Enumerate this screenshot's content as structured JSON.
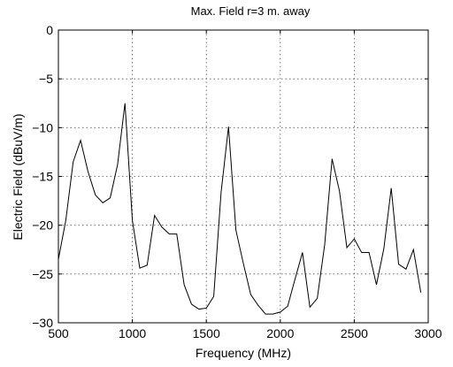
{
  "chart_data": {
    "type": "line",
    "title": "Max. Field r=3 m. away",
    "xlabel": "Frequency (MHz)",
    "ylabel": "Electric Field (dBuV/m)",
    "xlim": [
      500,
      3000
    ],
    "ylim": [
      -30,
      0
    ],
    "xticks": [
      500,
      1000,
      1500,
      2000,
      2500,
      3000
    ],
    "yticks": [
      0,
      -5,
      -10,
      -15,
      -20,
      -25,
      -30
    ],
    "grid": true,
    "series": [
      {
        "color": "#000000",
        "x": [
          500,
          550,
          600,
          650,
          700,
          750,
          800,
          850,
          900,
          950,
          1000,
          1050,
          1100,
          1150,
          1200,
          1250,
          1300,
          1350,
          1400,
          1450,
          1500,
          1550,
          1600,
          1650,
          1700,
          1750,
          1800,
          1850,
          1900,
          1950,
          2000,
          2050,
          2100,
          2150,
          2200,
          2250,
          2300,
          2350,
          2400,
          2450,
          2500,
          2550,
          2600,
          2650,
          2700,
          2750,
          2800,
          2850,
          2900,
          2950
        ],
        "y": [
          -23.5,
          -19.5,
          -13.5,
          -11.3,
          -14.5,
          -16.9,
          -17.7,
          -17.2,
          -13.8,
          -7.5,
          -19.5,
          -24.4,
          -24.1,
          -19.0,
          -20.2,
          -20.9,
          -20.9,
          -26.1,
          -28.1,
          -28.6,
          -28.5,
          -27.3,
          -16.6,
          -9.9,
          -20.5,
          -23.9,
          -27.1,
          -28.2,
          -29.1,
          -29.1,
          -28.9,
          -28.3,
          -25.5,
          -22.8,
          -28.4,
          -27.5,
          -22.0,
          -13.2,
          -16.5,
          -22.3,
          -21.4,
          -22.8,
          -22.8,
          -26.1,
          -22.4,
          -16.2,
          -24.0,
          -24.5,
          -22.5,
          -26.9
        ]
      }
    ]
  }
}
